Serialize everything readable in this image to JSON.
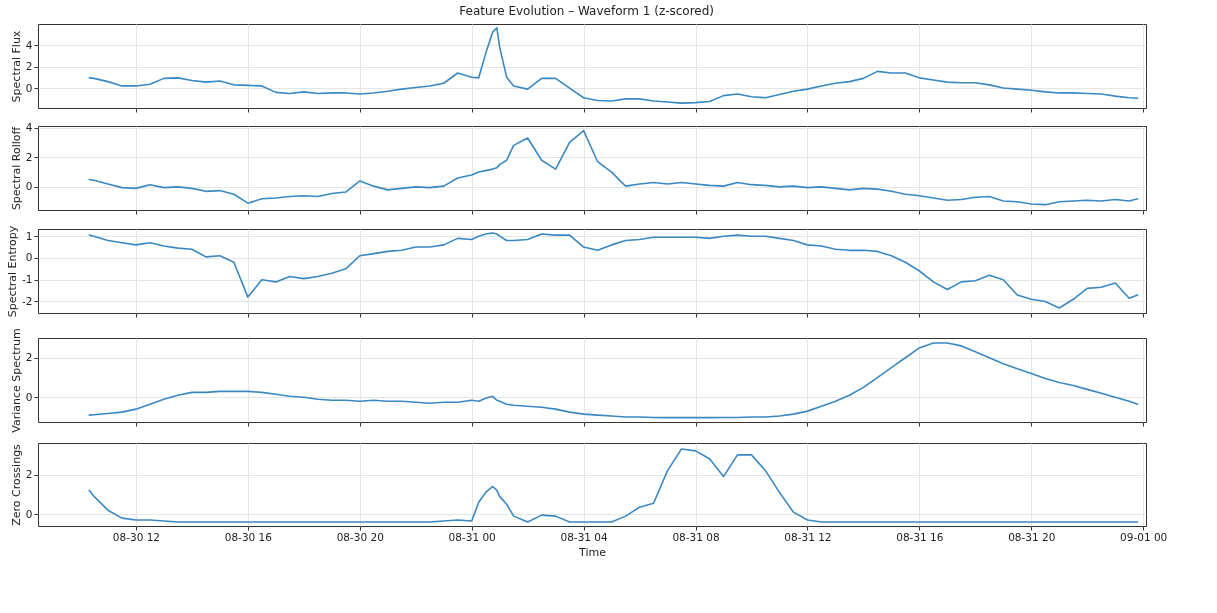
{
  "chart_data": [
    {
      "type": "line",
      "title": "Feature Evolution – Waveform 1 (z-scored)",
      "ylabel": "Spectral Flux",
      "grid": true,
      "tick_labels": "y",
      "x": [
        "--08-30T10:20",
        "--08-30T10:30",
        "--08-30T11:00",
        "--08-30T11:30",
        "--08-30T12:00",
        "--08-30T12:30",
        "--08-30T13:00",
        "--08-30T13:30",
        "--08-30T14:00",
        "--08-30T14:30",
        "--08-30T15:00",
        "--08-30T15:30",
        "--08-30T16:00",
        "--08-30T16:30",
        "--08-30T17:00",
        "--08-30T17:30",
        "--08-30T18:00",
        "--08-30T18:30",
        "--08-30T19:00",
        "--08-30T19:30",
        "--08-30T20:00",
        "--08-30T20:30",
        "--08-30T21:00",
        "--08-30T21:30",
        "--08-30T22:00",
        "--08-30T22:30",
        "--08-30T23:00",
        "--08-30T23:30",
        "--08-31T00:00",
        "--08-31T00:15",
        "--08-31T00:30",
        "--08-31T00:45",
        "--08-31T00:54",
        "--08-31T01:00",
        "--08-31T01:15",
        "--08-31T01:30",
        "--08-31T02:00",
        "--08-31T02:30",
        "--08-31T03:00",
        "--08-31T03:30",
        "--08-31T04:00",
        "--08-31T04:30",
        "--08-31T05:00",
        "--08-31T05:30",
        "--08-31T06:00",
        "--08-31T06:30",
        "--08-31T07:00",
        "--08-31T07:30",
        "--08-31T08:00",
        "--08-31T08:30",
        "--08-31T09:00",
        "--08-31T09:30",
        "--08-31T10:00",
        "--08-31T10:30",
        "--08-31T11:00",
        "--08-31T11:30",
        "--08-31T12:00",
        "--08-31T12:30",
        "--08-31T13:00",
        "--08-31T13:30",
        "--08-31T14:00",
        "--08-31T14:30",
        "--08-31T15:00",
        "--08-31T15:30",
        "--08-31T16:00",
        "--08-31T16:30",
        "--08-31T17:00",
        "--08-31T17:30",
        "--08-31T18:00",
        "--08-31T18:30",
        "--08-31T19:00",
        "--08-31T19:30",
        "--08-31T20:00",
        "--08-31T20:30",
        "--08-31T21:00",
        "--08-31T21:30",
        "--08-31T22:00",
        "--08-31T22:30",
        "--08-31T23:00",
        "--08-31T23:30",
        "--08-31T23:48"
      ],
      "xlim": [
        "--08-30T08:30",
        "--09-01T00:06"
      ],
      "xticks": [
        {
          "value": "--08-30T12:00",
          "label": "08-30 12"
        },
        {
          "value": "--08-30T16:00",
          "label": "08-30 16"
        },
        {
          "value": "--08-30T20:00",
          "label": "08-30 20"
        },
        {
          "value": "--08-31T00:00",
          "label": "08-31 00"
        },
        {
          "value": "--08-31T04:00",
          "label": "08-31 04"
        },
        {
          "value": "--08-31T08:00",
          "label": "08-31 08"
        },
        {
          "value": "--08-31T12:00",
          "label": "08-31 12"
        },
        {
          "value": "--08-31T16:00",
          "label": "08-31 16"
        },
        {
          "value": "--08-31T20:00",
          "label": "08-31 20"
        },
        {
          "value": "--09-01T00:00",
          "label": "09-01 00"
        }
      ],
      "ylim": [
        -1.85,
        5.95
      ],
      "yticks": [
        0,
        2,
        4
      ],
      "series": [
        {
          "color": "#3a88c2",
          "values": [
            0.95,
            0.9,
            0.6,
            0.2,
            0.2,
            0.35,
            0.9,
            0.95,
            0.7,
            0.55,
            0.65,
            0.3,
            0.25,
            0.2,
            -0.4,
            -0.5,
            -0.35,
            -0.5,
            -0.45,
            -0.45,
            -0.55,
            -0.45,
            -0.3,
            -0.1,
            0.05,
            0.2,
            0.45,
            1.4,
            1.0,
            0.95,
            3.2,
            5.2,
            5.6,
            3.8,
            1.0,
            0.2,
            -0.1,
            0.9,
            0.9,
            0.0,
            -0.9,
            -1.15,
            -1.2,
            -1.0,
            -1.0,
            -1.2,
            -1.3,
            -1.4,
            -1.35,
            -1.25,
            -0.7,
            -0.55,
            -0.8,
            -0.9,
            -0.6,
            -0.3,
            -0.1,
            0.2,
            0.45,
            0.6,
            0.9,
            1.55,
            1.4,
            1.4,
            0.95,
            0.75,
            0.55,
            0.5,
            0.5,
            0.3,
            0.0,
            -0.1,
            -0.2,
            -0.35,
            -0.45,
            -0.45,
            -0.5,
            -0.55,
            -0.75,
            -0.9,
            -0.95
          ]
        }
      ]
    },
    {
      "type": "line",
      "ylabel": "Spectral Rolloff",
      "grid": true,
      "tick_labels": "y",
      "x": [
        "--08-30T10:20",
        "--08-30T10:30",
        "--08-30T11:00",
        "--08-30T11:30",
        "--08-30T12:00",
        "--08-30T12:30",
        "--08-30T13:00",
        "--08-30T13:30",
        "--08-30T14:00",
        "--08-30T14:30",
        "--08-30T15:00",
        "--08-30T15:30",
        "--08-30T16:00",
        "--08-30T16:30",
        "--08-30T17:00",
        "--08-30T17:30",
        "--08-30T18:00",
        "--08-30T18:30",
        "--08-30T19:00",
        "--08-30T19:30",
        "--08-30T20:00",
        "--08-30T20:30",
        "--08-30T21:00",
        "--08-30T21:30",
        "--08-30T22:00",
        "--08-30T22:30",
        "--08-30T23:00",
        "--08-30T23:30",
        "--08-31T00:00",
        "--08-31T00:15",
        "--08-31T00:30",
        "--08-31T00:45",
        "--08-31T00:54",
        "--08-31T01:00",
        "--08-31T01:15",
        "--08-31T01:30",
        "--08-31T02:00",
        "--08-31T02:30",
        "--08-31T03:00",
        "--08-31T03:30",
        "--08-31T04:00",
        "--08-31T04:30",
        "--08-31T05:00",
        "--08-31T05:30",
        "--08-31T06:00",
        "--08-31T06:30",
        "--08-31T07:00",
        "--08-31T07:30",
        "--08-31T08:00",
        "--08-31T08:30",
        "--08-31T09:00",
        "--08-31T09:30",
        "--08-31T10:00",
        "--08-31T10:30",
        "--08-31T11:00",
        "--08-31T11:30",
        "--08-31T12:00",
        "--08-31T12:30",
        "--08-31T13:00",
        "--08-31T13:30",
        "--08-31T14:00",
        "--08-31T14:30",
        "--08-31T15:00",
        "--08-31T15:30",
        "--08-31T16:00",
        "--08-31T16:30",
        "--08-31T17:00",
        "--08-31T17:30",
        "--08-31T18:00",
        "--08-31T18:30",
        "--08-31T19:00",
        "--08-31T19:30",
        "--08-31T20:00",
        "--08-31T20:30",
        "--08-31T21:00",
        "--08-31T21:30",
        "--08-31T22:00",
        "--08-31T22:30",
        "--08-31T23:00",
        "--08-31T23:30",
        "--08-31T23:48"
      ],
      "xlim": [
        "--08-30T08:30",
        "--09-01T00:06"
      ],
      "xticks": [
        {
          "value": "--08-30T12:00",
          "label": "08-30 12"
        },
        {
          "value": "--08-30T16:00",
          "label": "08-30 16"
        },
        {
          "value": "--08-30T20:00",
          "label": "08-30 20"
        },
        {
          "value": "--08-31T00:00",
          "label": "08-31 00"
        },
        {
          "value": "--08-31T04:00",
          "label": "08-31 04"
        },
        {
          "value": "--08-31T08:00",
          "label": "08-31 08"
        },
        {
          "value": "--08-31T12:00",
          "label": "08-31 12"
        },
        {
          "value": "--08-31T16:00",
          "label": "08-31 16"
        },
        {
          "value": "--08-31T20:00",
          "label": "08-31 20"
        },
        {
          "value": "--09-01T00:00",
          "label": "09-01 00"
        }
      ],
      "ylim": [
        -1.56,
        4.11
      ],
      "yticks": [
        0,
        2,
        4
      ],
      "series": [
        {
          "color": "#3a88c2",
          "values": [
            0.5,
            0.45,
            0.2,
            -0.05,
            -0.1,
            0.15,
            -0.05,
            0.0,
            -0.1,
            -0.3,
            -0.25,
            -0.5,
            -1.1,
            -0.8,
            -0.75,
            -0.65,
            -0.6,
            -0.65,
            -0.45,
            -0.35,
            0.4,
            0.05,
            -0.2,
            -0.1,
            0.0,
            -0.05,
            0.05,
            0.6,
            0.8,
            1.0,
            1.1,
            1.2,
            1.3,
            1.5,
            1.8,
            2.8,
            3.3,
            1.8,
            1.2,
            3.0,
            3.8,
            1.7,
            1.0,
            0.05,
            0.2,
            0.3,
            0.2,
            0.3,
            0.2,
            0.1,
            0.05,
            0.3,
            0.15,
            0.1,
            0.0,
            0.05,
            -0.05,
            0.0,
            -0.1,
            -0.2,
            -0.1,
            -0.15,
            -0.3,
            -0.5,
            -0.6,
            -0.75,
            -0.9,
            -0.85,
            -0.7,
            -0.65,
            -0.95,
            -1.0,
            -1.15,
            -1.2,
            -1.0,
            -0.95,
            -0.9,
            -0.95,
            -0.85,
            -0.95,
            -0.8
          ]
        }
      ]
    },
    {
      "type": "line",
      "ylabel": "Spectral Entropy",
      "grid": true,
      "tick_labels": "y",
      "x": [
        "--08-30T10:20",
        "--08-30T10:30",
        "--08-30T11:00",
        "--08-30T11:30",
        "--08-30T12:00",
        "--08-30T12:30",
        "--08-30T13:00",
        "--08-30T13:30",
        "--08-30T14:00",
        "--08-30T14:30",
        "--08-30T15:00",
        "--08-30T15:30",
        "--08-30T16:00",
        "--08-30T16:30",
        "--08-30T17:00",
        "--08-30T17:30",
        "--08-30T18:00",
        "--08-30T18:30",
        "--08-30T19:00",
        "--08-30T19:30",
        "--08-30T20:00",
        "--08-30T20:30",
        "--08-30T21:00",
        "--08-30T21:30",
        "--08-30T22:00",
        "--08-30T22:30",
        "--08-30T23:00",
        "--08-30T23:30",
        "--08-31T00:00",
        "--08-31T00:15",
        "--08-31T00:30",
        "--08-31T00:45",
        "--08-31T00:54",
        "--08-31T01:00",
        "--08-31T01:15",
        "--08-31T01:30",
        "--08-31T02:00",
        "--08-31T02:30",
        "--08-31T03:00",
        "--08-31T03:30",
        "--08-31T04:00",
        "--08-31T04:30",
        "--08-31T05:00",
        "--08-31T05:30",
        "--08-31T06:00",
        "--08-31T06:30",
        "--08-31T07:00",
        "--08-31T07:30",
        "--08-31T08:00",
        "--08-31T08:30",
        "--08-31T09:00",
        "--08-31T09:30",
        "--08-31T10:00",
        "--08-31T10:30",
        "--08-31T11:00",
        "--08-31T11:30",
        "--08-31T12:00",
        "--08-31T12:30",
        "--08-31T13:00",
        "--08-31T13:30",
        "--08-31T14:00",
        "--08-31T14:30",
        "--08-31T15:00",
        "--08-31T15:30",
        "--08-31T16:00",
        "--08-31T16:30",
        "--08-31T17:00",
        "--08-31T17:30",
        "--08-31T18:00",
        "--08-31T18:30",
        "--08-31T19:00",
        "--08-31T19:30",
        "--08-31T20:00",
        "--08-31T20:30",
        "--08-31T21:00",
        "--08-31T21:30",
        "--08-31T22:00",
        "--08-31T22:30",
        "--08-31T23:00",
        "--08-31T23:30",
        "--08-31T23:48"
      ],
      "xlim": [
        "--08-30T08:30",
        "--09-01T00:06"
      ],
      "xticks": [
        {
          "value": "--08-30T12:00",
          "label": "08-30 12"
        },
        {
          "value": "--08-30T16:00",
          "label": "08-30 16"
        },
        {
          "value": "--08-30T20:00",
          "label": "08-30 20"
        },
        {
          "value": "--08-31T00:00",
          "label": "08-31 00"
        },
        {
          "value": "--08-31T04:00",
          "label": "08-31 04"
        },
        {
          "value": "--08-31T08:00",
          "label": "08-31 08"
        },
        {
          "value": "--08-31T12:00",
          "label": "08-31 12"
        },
        {
          "value": "--08-31T16:00",
          "label": "08-31 16"
        },
        {
          "value": "--08-31T20:00",
          "label": "08-31 20"
        },
        {
          "value": "--09-01T00:00",
          "label": "09-01 00"
        }
      ],
      "ylim": [
        -2.53,
        1.33
      ],
      "yticks": [
        -2,
        -1,
        0,
        1
      ],
      "series": [
        {
          "color": "#3a88c2",
          "values": [
            1.05,
            1.0,
            0.8,
            0.7,
            0.6,
            0.7,
            0.55,
            0.45,
            0.4,
            0.05,
            0.1,
            -0.2,
            -1.8,
            -1.0,
            -1.1,
            -0.85,
            -0.95,
            -0.85,
            -0.7,
            -0.5,
            0.1,
            0.2,
            0.3,
            0.35,
            0.5,
            0.5,
            0.6,
            0.9,
            0.85,
            1.0,
            1.1,
            1.15,
            1.1,
            1.0,
            0.8,
            0.8,
            0.85,
            1.1,
            1.05,
            1.05,
            0.5,
            0.35,
            0.6,
            0.8,
            0.85,
            0.95,
            0.95,
            0.95,
            0.95,
            0.9,
            1.0,
            1.05,
            1.0,
            1.0,
            0.9,
            0.8,
            0.6,
            0.55,
            0.4,
            0.35,
            0.35,
            0.3,
            0.1,
            -0.2,
            -0.6,
            -1.1,
            -1.45,
            -1.1,
            -1.05,
            -0.8,
            -1.0,
            -1.7,
            -1.9,
            -2.0,
            -2.3,
            -1.9,
            -1.4,
            -1.35,
            -1.15,
            -1.85,
            -1.7
          ]
        }
      ]
    },
    {
      "type": "line",
      "ylabel": "Variance Spectrum",
      "grid": true,
      "tick_labels": "y",
      "x": [
        "--08-30T10:20",
        "--08-30T10:30",
        "--08-30T11:00",
        "--08-30T11:30",
        "--08-30T12:00",
        "--08-30T12:30",
        "--08-30T13:00",
        "--08-30T13:30",
        "--08-30T14:00",
        "--08-30T14:30",
        "--08-30T15:00",
        "--08-30T15:30",
        "--08-30T16:00",
        "--08-30T16:30",
        "--08-30T17:00",
        "--08-30T17:30",
        "--08-30T18:00",
        "--08-30T18:30",
        "--08-30T19:00",
        "--08-30T19:30",
        "--08-30T20:00",
        "--08-30T20:30",
        "--08-30T21:00",
        "--08-30T21:30",
        "--08-30T22:00",
        "--08-30T22:30",
        "--08-30T23:00",
        "--08-30T23:30",
        "--08-31T00:00",
        "--08-31T00:15",
        "--08-31T00:30",
        "--08-31T00:45",
        "--08-31T00:54",
        "--08-31T01:00",
        "--08-31T01:15",
        "--08-31T01:30",
        "--08-31T02:00",
        "--08-31T02:30",
        "--08-31T03:00",
        "--08-31T03:30",
        "--08-31T04:00",
        "--08-31T04:30",
        "--08-31T05:00",
        "--08-31T05:30",
        "--08-31T06:00",
        "--08-31T06:30",
        "--08-31T07:00",
        "--08-31T07:30",
        "--08-31T08:00",
        "--08-31T08:30",
        "--08-31T09:00",
        "--08-31T09:30",
        "--08-31T10:00",
        "--08-31T10:30",
        "--08-31T11:00",
        "--08-31T11:30",
        "--08-31T12:00",
        "--08-31T12:30",
        "--08-31T13:00",
        "--08-31T13:30",
        "--08-31T14:00",
        "--08-31T14:30",
        "--08-31T15:00",
        "--08-31T15:30",
        "--08-31T16:00",
        "--08-31T16:30",
        "--08-31T17:00",
        "--08-31T17:30",
        "--08-31T18:00",
        "--08-31T18:30",
        "--08-31T19:00",
        "--08-31T19:30",
        "--08-31T20:00",
        "--08-31T20:30",
        "--08-31T21:00",
        "--08-31T21:30",
        "--08-31T22:00",
        "--08-31T22:30",
        "--08-31T23:00",
        "--08-31T23:30",
        "--08-31T23:48"
      ],
      "xlim": [
        "--08-30T08:30",
        "--09-01T00:06"
      ],
      "xticks": [
        {
          "value": "--08-30T12:00",
          "label": "08-30 12"
        },
        {
          "value": "--08-30T16:00",
          "label": "08-30 16"
        },
        {
          "value": "--08-30T20:00",
          "label": "08-30 20"
        },
        {
          "value": "--08-31T00:00",
          "label": "08-31 00"
        },
        {
          "value": "--08-31T04:00",
          "label": "08-31 04"
        },
        {
          "value": "--08-31T08:00",
          "label": "08-31 08"
        },
        {
          "value": "--08-31T12:00",
          "label": "08-31 12"
        },
        {
          "value": "--08-31T16:00",
          "label": "08-31 16"
        },
        {
          "value": "--08-31T20:00",
          "label": "08-31 20"
        },
        {
          "value": "--09-01T00:00",
          "label": "09-01 00"
        }
      ],
      "ylim": [
        -1.25,
        3.0
      ],
      "yticks": [
        0,
        2
      ],
      "series": [
        {
          "color": "#3a88c2",
          "values": [
            -0.9,
            -0.88,
            -0.82,
            -0.75,
            -0.6,
            -0.35,
            -0.1,
            0.1,
            0.25,
            0.25,
            0.3,
            0.3,
            0.3,
            0.25,
            0.15,
            0.05,
            0.0,
            -0.1,
            -0.15,
            -0.15,
            -0.2,
            -0.15,
            -0.2,
            -0.2,
            -0.25,
            -0.3,
            -0.25,
            -0.25,
            -0.15,
            -0.2,
            -0.05,
            0.05,
            -0.15,
            -0.2,
            -0.35,
            -0.4,
            -0.45,
            -0.5,
            -0.6,
            -0.75,
            -0.85,
            -0.9,
            -0.95,
            -1.0,
            -1.0,
            -1.02,
            -1.03,
            -1.03,
            -1.03,
            -1.03,
            -1.02,
            -1.02,
            -1.0,
            -1.0,
            -0.95,
            -0.85,
            -0.7,
            -0.45,
            -0.2,
            0.1,
            0.5,
            1.0,
            1.5,
            2.0,
            2.5,
            2.75,
            2.75,
            2.6,
            2.3,
            2.0,
            1.7,
            1.45,
            1.2,
            0.95,
            0.75,
            0.6,
            0.4,
            0.2,
            0.0,
            -0.2,
            -0.35
          ]
        }
      ]
    },
    {
      "type": "line",
      "ylabel": "Zero Crossings",
      "xlabel": "Time",
      "grid": true,
      "x": [
        "--08-30T10:20",
        "--08-30T10:30",
        "--08-30T11:00",
        "--08-30T11:30",
        "--08-30T12:00",
        "--08-30T12:30",
        "--08-30T13:00",
        "--08-30T13:30",
        "--08-30T14:00",
        "--08-30T14:30",
        "--08-30T15:00",
        "--08-30T15:30",
        "--08-30T16:00",
        "--08-30T16:30",
        "--08-30T17:00",
        "--08-30T17:30",
        "--08-30T18:00",
        "--08-30T18:30",
        "--08-30T19:00",
        "--08-30T19:30",
        "--08-30T20:00",
        "--08-30T20:30",
        "--08-30T21:00",
        "--08-30T21:30",
        "--08-30T22:00",
        "--08-30T22:30",
        "--08-30T23:00",
        "--08-30T23:30",
        "--08-31T00:00",
        "--08-31T00:15",
        "--08-31T00:30",
        "--08-31T00:45",
        "--08-31T00:54",
        "--08-31T01:00",
        "--08-31T01:15",
        "--08-31T01:30",
        "--08-31T02:00",
        "--08-31T02:30",
        "--08-31T03:00",
        "--08-31T03:30",
        "--08-31T04:00",
        "--08-31T04:30",
        "--08-31T05:00",
        "--08-31T05:30",
        "--08-31T06:00",
        "--08-31T06:30",
        "--08-31T07:00",
        "--08-31T07:30",
        "--08-31T08:00",
        "--08-31T08:30",
        "--08-31T09:00",
        "--08-31T09:30",
        "--08-31T10:00",
        "--08-31T10:30",
        "--08-31T11:00",
        "--08-31T11:30",
        "--08-31T12:00",
        "--08-31T12:30",
        "--08-31T13:00",
        "--08-31T13:30",
        "--08-31T14:00",
        "--08-31T14:30",
        "--08-31T15:00",
        "--08-31T15:30",
        "--08-31T16:00",
        "--08-31T16:30",
        "--08-31T17:00",
        "--08-31T17:30",
        "--08-31T18:00",
        "--08-31T18:30",
        "--08-31T19:00",
        "--08-31T19:30",
        "--08-31T20:00",
        "--08-31T20:30",
        "--08-31T21:00",
        "--08-31T21:30",
        "--08-31T22:00",
        "--08-31T22:30",
        "--08-31T23:00",
        "--08-31T23:30",
        "--08-31T23:48"
      ],
      "xlim": [
        "--08-30T08:30",
        "--09-01T00:06"
      ],
      "xticks": [
        {
          "value": "--08-30T12:00",
          "label": "08-30 12"
        },
        {
          "value": "--08-30T16:00",
          "label": "08-30 16"
        },
        {
          "value": "--08-30T20:00",
          "label": "08-30 20"
        },
        {
          "value": "--08-31T00:00",
          "label": "08-31 00"
        },
        {
          "value": "--08-31T04:00",
          "label": "08-31 04"
        },
        {
          "value": "--08-31T08:00",
          "label": "08-31 08"
        },
        {
          "value": "--08-31T12:00",
          "label": "08-31 12"
        },
        {
          "value": "--08-31T16:00",
          "label": "08-31 16"
        },
        {
          "value": "--08-31T20:00",
          "label": "08-31 20"
        },
        {
          "value": "--09-01T00:00",
          "label": "09-01 00"
        }
      ],
      "ylim": [
        -0.6,
        3.6
      ],
      "yticks": [
        0,
        2
      ],
      "series": [
        {
          "color": "#3a88c2",
          "values": [
            1.2,
            0.9,
            0.2,
            -0.2,
            -0.3,
            -0.3,
            -0.35,
            -0.4,
            -0.4,
            -0.4,
            -0.4,
            -0.4,
            -0.4,
            -0.4,
            -0.4,
            -0.4,
            -0.4,
            -0.4,
            -0.4,
            -0.4,
            -0.4,
            -0.4,
            -0.4,
            -0.4,
            -0.4,
            -0.4,
            -0.35,
            -0.3,
            -0.35,
            0.6,
            1.1,
            1.4,
            1.2,
            0.9,
            0.5,
            -0.1,
            -0.4,
            -0.05,
            -0.1,
            -0.4,
            -0.4,
            -0.4,
            -0.4,
            -0.1,
            0.35,
            0.55,
            2.2,
            3.3,
            3.2,
            2.8,
            1.9,
            3.0,
            3.0,
            2.2,
            1.1,
            0.1,
            -0.3,
            -0.4,
            -0.4,
            -0.4,
            -0.4,
            -0.4,
            -0.4,
            -0.4,
            -0.4,
            -0.4,
            -0.4,
            -0.4,
            -0.4,
            -0.4,
            -0.4,
            -0.4,
            -0.4,
            -0.4,
            -0.4,
            -0.4,
            -0.4,
            -0.4,
            -0.4,
            -0.4,
            -0.4
          ]
        }
      ]
    }
  ]
}
